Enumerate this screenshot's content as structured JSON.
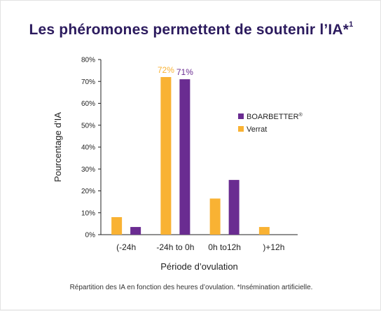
{
  "chart_data": {
    "type": "bar",
    "title": "Les phéromones permettent de soutenir l’IA*",
    "title_sup": "1",
    "xlabel": "Période d’ovulation",
    "ylabel": "Pourcentage d’IA",
    "categories": [
      "(-24h",
      "-24h to 0h",
      "0h to12h",
      ")+12h"
    ],
    "ylim": [
      0,
      80
    ],
    "yticks": [
      0,
      10,
      20,
      30,
      40,
      50,
      60,
      70,
      80
    ],
    "ytick_suffix": "%",
    "grid": false,
    "legend_position": "right",
    "series": [
      {
        "name": "Verrat",
        "color": "#f9b233",
        "values": [
          8,
          72,
          16.5,
          3.5
        ]
      },
      {
        "name": "BOARBETTER",
        "name_sup": "®",
        "color": "#6a2c91",
        "values": [
          3.5,
          71,
          25,
          0
        ]
      }
    ],
    "data_labels": [
      {
        "series": 0,
        "index": 1,
        "text": "72%"
      },
      {
        "series": 1,
        "index": 1,
        "text": "71%"
      }
    ]
  },
  "caption": "Répartition des IA en fonction des heures d’ovulation.  *Insémination artificielle."
}
